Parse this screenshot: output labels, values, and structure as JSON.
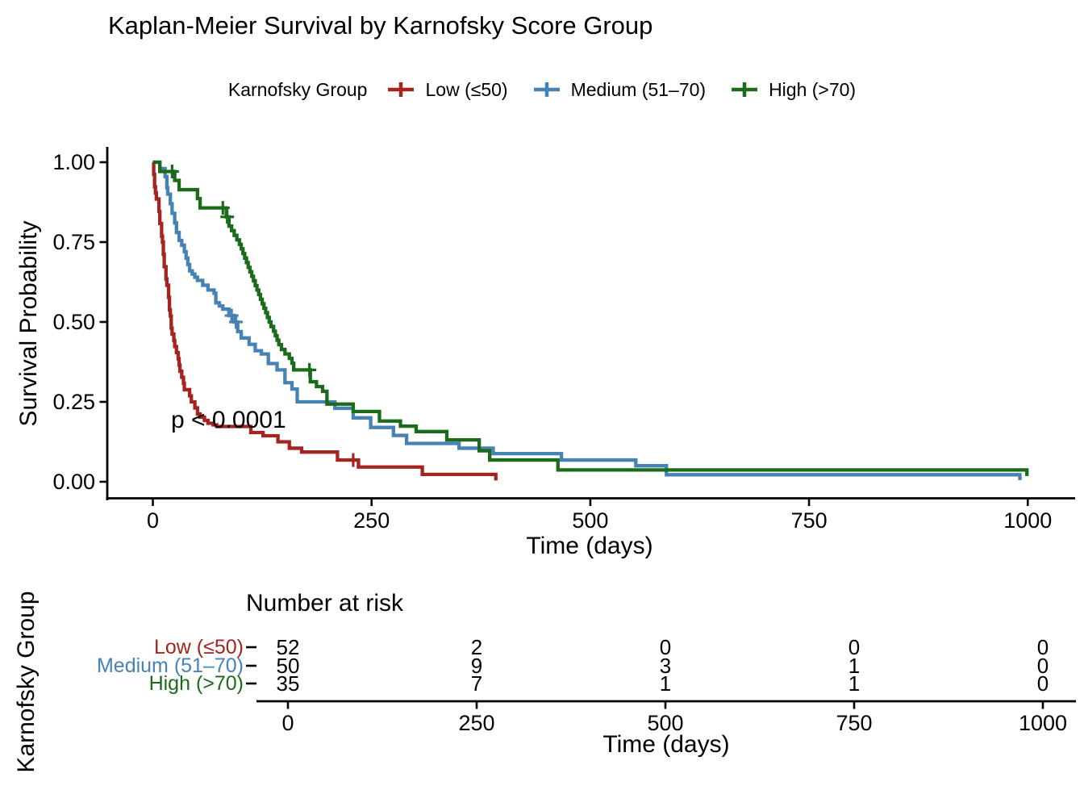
{
  "title": "Kaplan-Meier Survival by Karnofsky Score Group",
  "legend": {
    "title": "Karnofsky Group",
    "items": [
      {
        "label": "Low (≤50)",
        "color": "#A42420"
      },
      {
        "label": "Medium (51–70)",
        "color": "#4682B4"
      },
      {
        "label": "High (>70)",
        "color": "#1A6B1A"
      }
    ]
  },
  "annotation": {
    "p_value": "p < 0.0001"
  },
  "axes": {
    "x": {
      "label": "Time (days)",
      "tick_labels": [
        "0",
        "250",
        "500",
        "750",
        "1000"
      ],
      "tick_values": [
        0,
        250,
        500,
        750,
        1000
      ],
      "range": [
        0,
        1050
      ]
    },
    "y": {
      "label": "Survival Probability",
      "tick_labels": [
        "0.00",
        "0.25",
        "0.50",
        "0.75",
        "1.00"
      ],
      "tick_values": [
        0,
        0.25,
        0.5,
        0.75,
        1.0
      ],
      "range": [
        0,
        1
      ]
    }
  },
  "risk_table": {
    "title": "Number at risk",
    "axis_label": "Karnofsky Group",
    "x_label": "Time (days)",
    "time_values": [
      0,
      250,
      500,
      750,
      1000
    ],
    "time_labels": [
      "0",
      "250",
      "500",
      "750",
      "1000"
    ],
    "rows": [
      {
        "label": "Low (≤50)",
        "color": "#A42420",
        "counts": [
          "52",
          "2",
          "0",
          "0",
          "0"
        ]
      },
      {
        "label": "Medium (51–70)",
        "color": "#4682B4",
        "counts": [
          "50",
          "9",
          "3",
          "1",
          "0"
        ]
      },
      {
        "label": "High (>70)",
        "color": "#1A6B1A",
        "counts": [
          "35",
          "7",
          "1",
          "1",
          "0"
        ]
      }
    ]
  },
  "chart_data": {
    "type": "line",
    "subtype": "kaplan-meier-step",
    "title": "Kaplan-Meier Survival by Karnofsky Score Group",
    "xlabel": "Time (days)",
    "ylabel": "Survival Probability",
    "xlim": [
      0,
      1050
    ],
    "ylim": [
      0,
      1
    ],
    "grid": false,
    "legend_position": "top",
    "p_value_annotation": {
      "text": "p < 0.0001",
      "x": 20,
      "y": 0.165
    },
    "series": [
      {
        "name": "Low (≤50)",
        "color": "#A42420",
        "n_at_start": 52,
        "points": [
          [
            0,
            1.0
          ],
          [
            1,
            0.962
          ],
          [
            2,
            0.923
          ],
          [
            3,
            0.904
          ],
          [
            4,
            0.885
          ],
          [
            7,
            0.846
          ],
          [
            8,
            0.808
          ],
          [
            10,
            0.769
          ],
          [
            11,
            0.75
          ],
          [
            12,
            0.712
          ],
          [
            13,
            0.673
          ],
          [
            15,
            0.635
          ],
          [
            16,
            0.615
          ],
          [
            18,
            0.577
          ],
          [
            19,
            0.538
          ],
          [
            20,
            0.519
          ],
          [
            21,
            0.481
          ],
          [
            22,
            0.462
          ],
          [
            24,
            0.442
          ],
          [
            25,
            0.423
          ],
          [
            27,
            0.404
          ],
          [
            29,
            0.385
          ],
          [
            30,
            0.365
          ],
          [
            31,
            0.346
          ],
          [
            33,
            0.327
          ],
          [
            35,
            0.308
          ],
          [
            36,
            0.288
          ],
          [
            42,
            0.269
          ],
          [
            44,
            0.25
          ],
          [
            48,
            0.231
          ],
          [
            51,
            0.212
          ],
          [
            54,
            0.202
          ],
          [
            59,
            0.192
          ],
          [
            63,
            0.183
          ],
          [
            69,
            0.178
          ],
          [
            73,
            0.173
          ],
          [
            112,
            0.154
          ],
          [
            126,
            0.144
          ],
          [
            143,
            0.125
          ],
          [
            156,
            0.105
          ],
          [
            170,
            0.093
          ],
          [
            211,
            0.068
          ],
          [
            235,
            0.046
          ],
          [
            308,
            0.023
          ],
          [
            392,
            0.004
          ]
        ],
        "censor_times": [
          [
            229,
            0.068
          ]
        ]
      },
      {
        "name": "Medium (51–70)",
        "color": "#4682B4",
        "n_at_start": 50,
        "points": [
          [
            0,
            1.0
          ],
          [
            8,
            0.98
          ],
          [
            14,
            0.955
          ],
          [
            16,
            0.92
          ],
          [
            17,
            0.9
          ],
          [
            20,
            0.87
          ],
          [
            22,
            0.84
          ],
          [
            25,
            0.81
          ],
          [
            27,
            0.78
          ],
          [
            30,
            0.755
          ],
          [
            33,
            0.74
          ],
          [
            36,
            0.72
          ],
          [
            38,
            0.7
          ],
          [
            40,
            0.68
          ],
          [
            42,
            0.66
          ],
          [
            45,
            0.65
          ],
          [
            48,
            0.64
          ],
          [
            51,
            0.63
          ],
          [
            57,
            0.615
          ],
          [
            63,
            0.6
          ],
          [
            70,
            0.59
          ],
          [
            72,
            0.56
          ],
          [
            76,
            0.55
          ],
          [
            80,
            0.54
          ],
          [
            87,
            0.52
          ],
          [
            93,
            0.5
          ],
          [
            97,
            0.47
          ],
          [
            101,
            0.45
          ],
          [
            110,
            0.43
          ],
          [
            117,
            0.41
          ],
          [
            124,
            0.4
          ],
          [
            132,
            0.37
          ],
          [
            142,
            0.35
          ],
          [
            151,
            0.31
          ],
          [
            159,
            0.29
          ],
          [
            165,
            0.25
          ],
          [
            208,
            0.23
          ],
          [
            229,
            0.2
          ],
          [
            249,
            0.17
          ],
          [
            275,
            0.145
          ],
          [
            290,
            0.12
          ],
          [
            350,
            0.105
          ],
          [
            389,
            0.088
          ],
          [
            467,
            0.068
          ],
          [
            552,
            0.05
          ],
          [
            587,
            0.022
          ],
          [
            991,
            0.005
          ]
        ],
        "censor_times": [
          [
            90,
            0.52
          ],
          [
            95,
            0.5
          ]
        ]
      },
      {
        "name": "High (>70)",
        "color": "#1A6B1A",
        "n_at_start": 35,
        "points": [
          [
            0,
            1.0
          ],
          [
            8,
            0.971
          ],
          [
            25,
            0.943
          ],
          [
            30,
            0.914
          ],
          [
            51,
            0.886
          ],
          [
            54,
            0.857
          ],
          [
            84,
            0.829
          ],
          [
            87,
            0.8
          ],
          [
            90,
            0.786
          ],
          [
            93,
            0.771
          ],
          [
            96,
            0.757
          ],
          [
            99,
            0.743
          ],
          [
            101,
            0.729
          ],
          [
            103,
            0.714
          ],
          [
            105,
            0.7
          ],
          [
            107,
            0.686
          ],
          [
            109,
            0.671
          ],
          [
            111,
            0.657
          ],
          [
            113,
            0.643
          ],
          [
            115,
            0.629
          ],
          [
            117,
            0.614
          ],
          [
            119,
            0.6
          ],
          [
            121,
            0.586
          ],
          [
            123,
            0.571
          ],
          [
            125,
            0.557
          ],
          [
            127,
            0.543
          ],
          [
            129,
            0.529
          ],
          [
            131,
            0.514
          ],
          [
            133,
            0.5
          ],
          [
            135,
            0.486
          ],
          [
            138,
            0.471
          ],
          [
            140,
            0.457
          ],
          [
            142,
            0.443
          ],
          [
            144,
            0.429
          ],
          [
            147,
            0.414
          ],
          [
            151,
            0.4
          ],
          [
            156,
            0.386
          ],
          [
            159,
            0.371
          ],
          [
            161,
            0.35
          ],
          [
            180,
            0.313
          ],
          [
            187,
            0.298
          ],
          [
            194,
            0.283
          ],
          [
            199,
            0.243
          ],
          [
            229,
            0.22
          ],
          [
            259,
            0.19
          ],
          [
            283,
            0.174
          ],
          [
            301,
            0.157
          ],
          [
            336,
            0.131
          ],
          [
            373,
            0.097
          ],
          [
            385,
            0.068
          ],
          [
            463,
            0.037
          ],
          [
            999,
            0.018
          ]
        ],
        "censor_times": [
          [
            22,
            0.971
          ],
          [
            80,
            0.857
          ],
          [
            85,
            0.829
          ],
          [
            179,
            0.35
          ]
        ]
      }
    ],
    "risk_table": {
      "times": [
        0,
        250,
        500,
        750,
        1000
      ],
      "groups": [
        "Low (≤50)",
        "Medium (51–70)",
        "High (>70)"
      ],
      "counts": [
        [
          52,
          2,
          0,
          0,
          0
        ],
        [
          50,
          9,
          3,
          1,
          0
        ],
        [
          35,
          7,
          1,
          1,
          0
        ]
      ]
    }
  },
  "colors": {
    "axis": "#000000",
    "text": "#000000",
    "background": "#FFFFFF"
  }
}
